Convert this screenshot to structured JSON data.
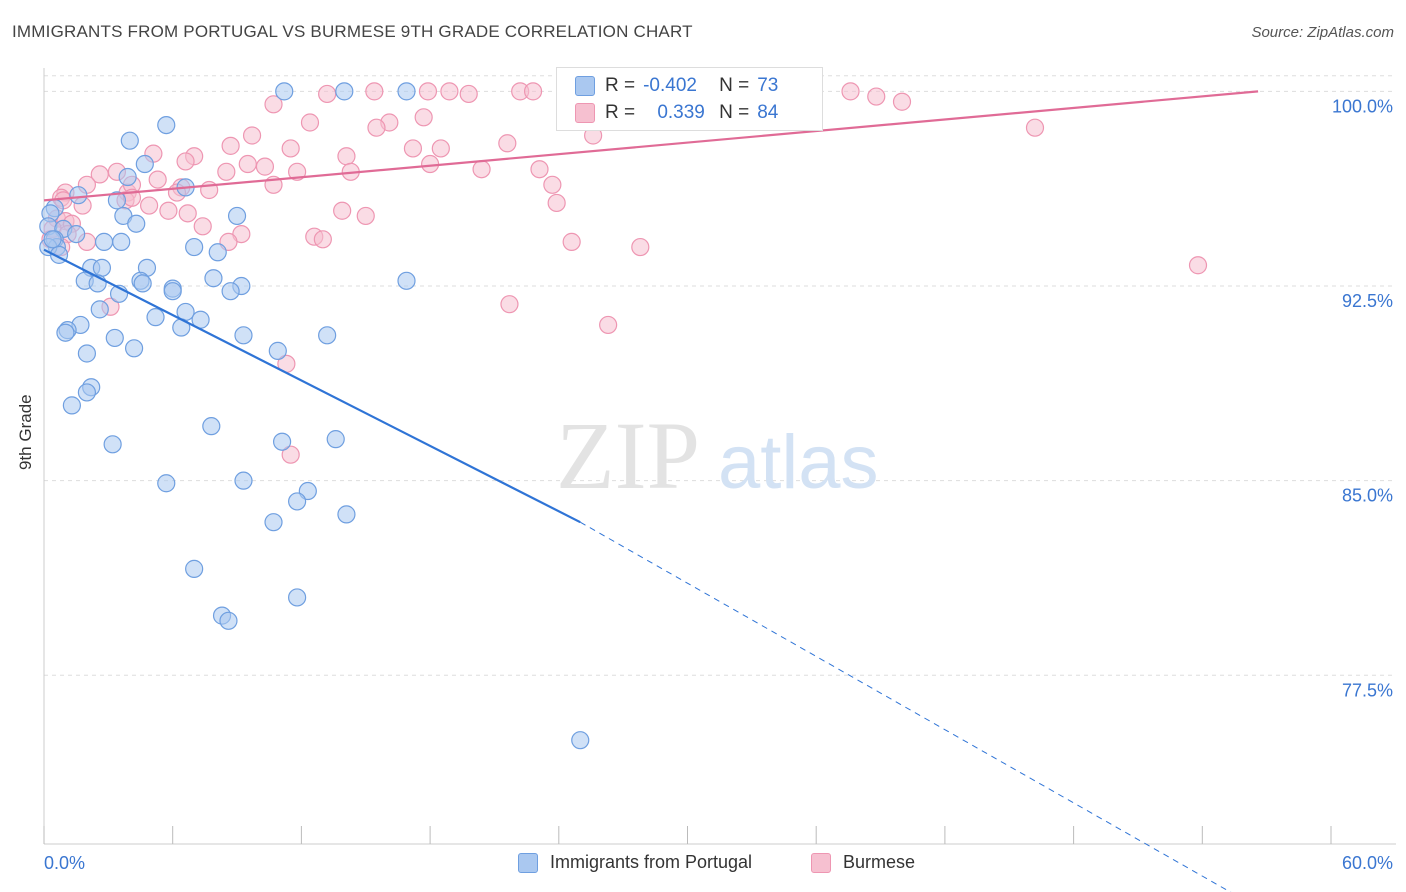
{
  "title": "IMMIGRANTS FROM PORTUGAL VS BURMESE 9TH GRADE CORRELATION CHART",
  "source": "Source: ZipAtlas.com",
  "watermark": {
    "zip": "ZIP",
    "atlas": "atlas"
  },
  "colors": {
    "blue_fill": "#aac8f0",
    "blue_stroke": "#6f9fe0",
    "blue_line": "#2f74d6",
    "pink_fill": "#f6c0d0",
    "pink_stroke": "#ee96b2",
    "pink_line": "#e06b96",
    "tick_label": "#3a76d1",
    "grid": "#dddddd"
  },
  "stats": [
    {
      "r_label": "R =",
      "r_value": "-0.402",
      "n_label": "N =",
      "n_value": "73"
    },
    {
      "r_label": "R =",
      "r_value": "0.339",
      "n_label": "N =",
      "n_value": "84"
    }
  ],
  "legend": [
    "Immigrants from Portugal",
    "Burmese"
  ],
  "chart_data": {
    "type": "scatter",
    "title": "IMMIGRANTS FROM PORTUGAL VS BURMESE 9TH GRADE CORRELATION CHART",
    "xlabel": "",
    "ylabel": "9th Grade",
    "xlim": [
      0,
      60
    ],
    "ylim": [
      71.0,
      100.9
    ],
    "x_tick_labels": [
      "0.0%",
      "60.0%"
    ],
    "y_ticks": [
      77.5,
      85.0,
      92.5,
      100.0
    ],
    "y_tick_labels": [
      "77.5%",
      "85.0%",
      "92.5%",
      "100.0%"
    ],
    "grid": true,
    "legend_position": "bottom",
    "series": [
      {
        "name": "Immigrants from Portugal",
        "color": "#aac8f0",
        "trend": {
          "x": [
            0.0,
            25.0
          ],
          "y": [
            93.9,
            83.4
          ],
          "dashed_to": [
            60.0,
            68.4
          ]
        },
        "points": [
          [
            11.2,
            100.0
          ],
          [
            14.0,
            100.0
          ],
          [
            16.9,
            100.0
          ],
          [
            5.7,
            98.7
          ],
          [
            4.0,
            98.1
          ],
          [
            4.7,
            97.2
          ],
          [
            3.9,
            96.7
          ],
          [
            6.6,
            96.3
          ],
          [
            1.6,
            96.0
          ],
          [
            3.4,
            95.8
          ],
          [
            0.5,
            95.5
          ],
          [
            0.3,
            95.3
          ],
          [
            3.7,
            95.2
          ],
          [
            9.0,
            95.2
          ],
          [
            4.3,
            94.9
          ],
          [
            0.2,
            94.8
          ],
          [
            0.9,
            94.7
          ],
          [
            1.5,
            94.5
          ],
          [
            0.5,
            94.3
          ],
          [
            0.6,
            94.0
          ],
          [
            0.2,
            94.0
          ],
          [
            2.8,
            94.2
          ],
          [
            3.6,
            94.2
          ],
          [
            7.0,
            94.0
          ],
          [
            8.1,
            93.8
          ],
          [
            0.7,
            93.7
          ],
          [
            2.2,
            93.2
          ],
          [
            2.7,
            93.2
          ],
          [
            4.8,
            93.2
          ],
          [
            7.9,
            92.8
          ],
          [
            1.9,
            92.7
          ],
          [
            4.5,
            92.7
          ],
          [
            2.5,
            92.6
          ],
          [
            4.6,
            92.6
          ],
          [
            9.2,
            92.5
          ],
          [
            16.9,
            92.7
          ],
          [
            6.0,
            92.4
          ],
          [
            6.0,
            92.3
          ],
          [
            8.7,
            92.3
          ],
          [
            3.5,
            92.2
          ],
          [
            2.6,
            91.6
          ],
          [
            6.6,
            91.5
          ],
          [
            5.2,
            91.3
          ],
          [
            7.3,
            91.2
          ],
          [
            1.7,
            91.0
          ],
          [
            1.1,
            90.8
          ],
          [
            1.0,
            90.7
          ],
          [
            6.4,
            90.9
          ],
          [
            9.3,
            90.6
          ],
          [
            13.2,
            90.6
          ],
          [
            3.3,
            90.5
          ],
          [
            4.2,
            90.1
          ],
          [
            10.9,
            90.0
          ],
          [
            2.0,
            89.9
          ],
          [
            2.2,
            88.6
          ],
          [
            2.0,
            88.4
          ],
          [
            1.3,
            87.9
          ],
          [
            7.8,
            87.1
          ],
          [
            13.6,
            86.6
          ],
          [
            11.1,
            86.5
          ],
          [
            3.2,
            86.4
          ],
          [
            5.7,
            84.9
          ],
          [
            9.3,
            85.0
          ],
          [
            12.3,
            84.6
          ],
          [
            11.8,
            84.2
          ],
          [
            14.1,
            83.7
          ],
          [
            10.7,
            83.4
          ],
          [
            7.0,
            81.6
          ],
          [
            11.8,
            80.5
          ],
          [
            8.3,
            79.8
          ],
          [
            8.6,
            79.6
          ],
          [
            25.0,
            75.0
          ],
          [
            0.4,
            94.3
          ]
        ]
      },
      {
        "name": "Burmese",
        "color": "#f6c0d0",
        "trend": {
          "x": [
            0.0,
            56.6
          ],
          "y": [
            95.8,
            100.0
          ]
        },
        "points": [
          [
            15.4,
            100.0
          ],
          [
            17.9,
            100.0
          ],
          [
            18.9,
            100.0
          ],
          [
            22.2,
            100.0
          ],
          [
            22.8,
            100.0
          ],
          [
            24.8,
            100.0
          ],
          [
            27.0,
            100.0
          ],
          [
            28.2,
            100.0
          ],
          [
            31.2,
            100.0
          ],
          [
            32.0,
            100.0
          ],
          [
            37.6,
            100.0
          ],
          [
            38.8,
            99.8
          ],
          [
            40.0,
            99.6
          ],
          [
            10.7,
            99.5
          ],
          [
            17.7,
            99.0
          ],
          [
            12.4,
            98.8
          ],
          [
            16.1,
            98.8
          ],
          [
            15.5,
            98.6
          ],
          [
            46.2,
            98.6
          ],
          [
            9.7,
            98.3
          ],
          [
            25.6,
            98.3
          ],
          [
            21.6,
            98.0
          ],
          [
            8.7,
            97.9
          ],
          [
            11.5,
            97.8
          ],
          [
            17.2,
            97.8
          ],
          [
            18.5,
            97.8
          ],
          [
            5.1,
            97.6
          ],
          [
            7.0,
            97.5
          ],
          [
            14.1,
            97.5
          ],
          [
            6.6,
            97.3
          ],
          [
            9.5,
            97.2
          ],
          [
            10.3,
            97.1
          ],
          [
            18.0,
            97.2
          ],
          [
            8.5,
            96.9
          ],
          [
            11.8,
            96.9
          ],
          [
            14.3,
            96.9
          ],
          [
            20.4,
            97.0
          ],
          [
            23.1,
            97.0
          ],
          [
            3.4,
            96.9
          ],
          [
            2.6,
            96.8
          ],
          [
            5.3,
            96.6
          ],
          [
            6.4,
            96.3
          ],
          [
            7.7,
            96.2
          ],
          [
            2.0,
            96.4
          ],
          [
            6.2,
            96.1
          ],
          [
            10.7,
            96.4
          ],
          [
            3.9,
            96.1
          ],
          [
            4.1,
            96.4
          ],
          [
            23.7,
            96.4
          ],
          [
            1.0,
            96.1
          ],
          [
            0.8,
            95.9
          ],
          [
            0.9,
            95.8
          ],
          [
            1.8,
            95.6
          ],
          [
            3.8,
            95.8
          ],
          [
            4.9,
            95.6
          ],
          [
            23.9,
            95.7
          ],
          [
            5.8,
            95.4
          ],
          [
            13.9,
            95.4
          ],
          [
            6.7,
            95.3
          ],
          [
            15.0,
            95.2
          ],
          [
            0.6,
            95.1
          ],
          [
            1.0,
            95.0
          ],
          [
            1.3,
            94.9
          ],
          [
            0.4,
            94.7
          ],
          [
            1.1,
            94.5
          ],
          [
            0.3,
            94.3
          ],
          [
            9.2,
            94.5
          ],
          [
            12.6,
            94.4
          ],
          [
            13.0,
            94.3
          ],
          [
            8.6,
            94.2
          ],
          [
            24.6,
            94.2
          ],
          [
            27.8,
            94.0
          ],
          [
            53.8,
            93.3
          ],
          [
            7.4,
            94.8
          ],
          [
            2.0,
            94.2
          ],
          [
            0.8,
            94.0
          ],
          [
            21.7,
            91.8
          ],
          [
            3.1,
            91.7
          ],
          [
            26.3,
            91.0
          ],
          [
            11.3,
            89.5
          ],
          [
            11.5,
            86.0
          ],
          [
            13.2,
            99.9
          ],
          [
            19.8,
            99.9
          ],
          [
            4.1,
            95.9
          ]
        ]
      }
    ]
  }
}
